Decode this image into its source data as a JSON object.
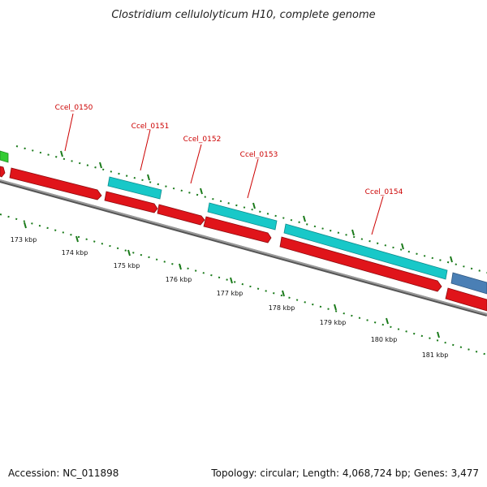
{
  "title": "Clostridium cellulolyticum H10, complete genome",
  "footer": {
    "accession": "Accession: NC_011898",
    "topology": "Topology: circular; Length: 4,068,724 bp; Genes: 3,477"
  },
  "scale": {
    "ticks": [
      "173 kbp",
      "174 kbp",
      "175 kbp",
      "176 kbp",
      "177 kbp",
      "178 kbp",
      "179 kbp",
      "180 kbp",
      "181 kbp"
    ]
  },
  "genes": [
    {
      "label": "Ccel_0150",
      "track": "forward"
    },
    {
      "label": "Ccel_0151",
      "track": "forward"
    },
    {
      "label": "Ccel_0152",
      "track": "forward"
    },
    {
      "label": "Ccel_0153",
      "track": "forward"
    },
    {
      "label": "Ccel_0154",
      "track": "forward"
    }
  ],
  "colors": {
    "cds_forward": "#e0141a",
    "cds_reverse_cyan": "#18c8c8",
    "cds_green": "#33cc33",
    "cds_blue": "#4a7fb5",
    "backbone": "#808080",
    "gc_skew": "#1a7a1a",
    "label": "#cc0000"
  }
}
